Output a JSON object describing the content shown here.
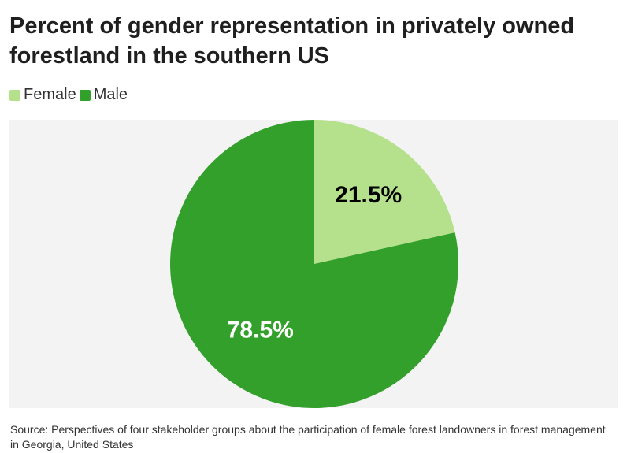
{
  "title": "Percent of gender representation in privately owned forestland in the southern US",
  "source": "Source: Perspectives of four stakeholder groups about the participation of female forest landowners in forest management in Georgia, United States",
  "chart_data": {
    "type": "pie",
    "title": "Percent of gender representation in privately owned forestland in the southern US",
    "legend_position": "top-left",
    "slices": [
      {
        "label": "Female",
        "value": 21.5,
        "display": "21.5%",
        "color": "#b5e08c",
        "label_color": "#000000"
      },
      {
        "label": "Male",
        "value": 78.5,
        "display": "78.5%",
        "color": "#33a02c",
        "label_color": "#ffffff"
      }
    ],
    "background_color": "#f3f3f3"
  }
}
